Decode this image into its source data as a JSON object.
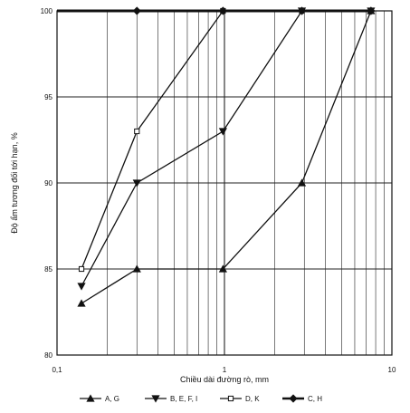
{
  "chart_data": {
    "type": "line",
    "title": "",
    "xlabel": "Chiều dài đường rò, mm",
    "ylabel": "Độ ẩm tương đối tới hạn, %",
    "x_scale": "log",
    "xlim": [
      0.1,
      10
    ],
    "ylim": [
      80,
      100
    ],
    "x_ticks": [
      {
        "value": 0.1,
        "label": "0,1"
      },
      {
        "value": 1,
        "label": "1"
      },
      {
        "value": 10,
        "label": "10"
      }
    ],
    "y_ticks": [
      {
        "value": 80,
        "label": "80"
      },
      {
        "value": 85,
        "label": "85"
      },
      {
        "value": 90,
        "label": "90"
      },
      {
        "value": 95,
        "label": "95"
      },
      {
        "value": 100,
        "label": "100"
      }
    ],
    "grid": true,
    "legend_position": "bottom",
    "series": [
      {
        "name": "A, G",
        "marker": "triangle-up",
        "x": [
          0.14,
          0.3,
          0.98,
          2.9,
          7.5
        ],
        "y": [
          83,
          85,
          85,
          90,
          100
        ]
      },
      {
        "name": "B, E, F, I",
        "marker": "triangle-down",
        "x": [
          0.14,
          0.3,
          0.98,
          2.9,
          7.5
        ],
        "y": [
          84,
          90,
          93,
          100,
          100
        ]
      },
      {
        "name": "D, K",
        "marker": "square-open",
        "x": [
          0.14,
          0.3,
          0.98,
          2.9,
          7.5
        ],
        "y": [
          85,
          93,
          100,
          100,
          100
        ]
      },
      {
        "name": "C, H",
        "marker": "diamond",
        "x": [
          0.1,
          0.3,
          0.98,
          2.9,
          7.5
        ],
        "y": [
          100,
          100,
          100,
          100,
          100
        ]
      }
    ]
  }
}
